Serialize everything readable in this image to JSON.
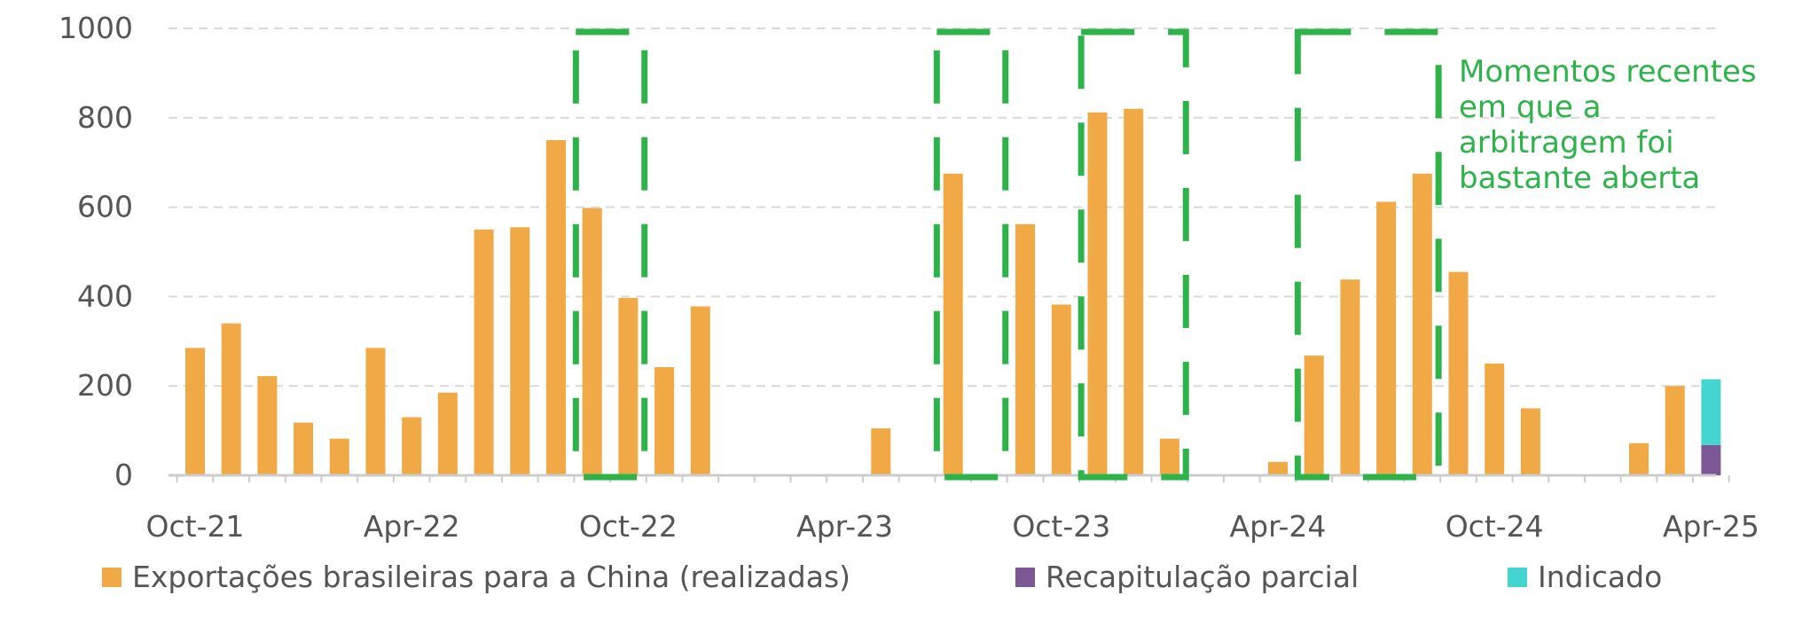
{
  "chart_data": {
    "type": "bar",
    "stacked": true,
    "ylim": [
      0,
      1000
    ],
    "yticks": [
      "0",
      "200",
      "400",
      "600",
      "800",
      "1000"
    ],
    "xtick_labels": [
      "Oct-21",
      "Apr-22",
      "Oct-22",
      "Apr-23",
      "Oct-23",
      "Apr-24",
      "Oct-24",
      "Apr-25"
    ],
    "months": [
      "Oct-21",
      "Nov-21",
      "Dec-21",
      "Jan-22",
      "Feb-22",
      "Mar-22",
      "Apr-22",
      "May-22",
      "Jun-22",
      "Jul-22",
      "Aug-22",
      "Sep-22",
      "Oct-22",
      "Nov-22",
      "Dec-22",
      "Jan-23",
      "Feb-23",
      "Mar-23",
      "Apr-23",
      "May-23",
      "Jun-23",
      "Jul-23",
      "Aug-23",
      "Sep-23",
      "Oct-23",
      "Nov-23",
      "Dec-23",
      "Jan-24",
      "Feb-24",
      "Mar-24",
      "Apr-24",
      "May-24",
      "Jun-24",
      "Jul-24",
      "Aug-24",
      "Sep-24",
      "Oct-24",
      "Nov-24",
      "Dec-24",
      "Jan-25",
      "Feb-25",
      "Mar-25",
      "Apr-25"
    ],
    "series": [
      {
        "name": "Exportações brasileiras para a China (realizadas)",
        "color": "#f0a945",
        "values": [
          285,
          340,
          222,
          118,
          82,
          285,
          130,
          185,
          550,
          555,
          750,
          598,
          397,
          242,
          378,
          0,
          0,
          0,
          0,
          105,
          0,
          675,
          0,
          562,
          382,
          812,
          820,
          82,
          0,
          0,
          30,
          268,
          438,
          612,
          675,
          455,
          250,
          150,
          0,
          0,
          72,
          200,
          0
        ]
      },
      {
        "name": "Recapitulação parcial",
        "color": "#7d5897",
        "values": [
          0,
          0,
          0,
          0,
          0,
          0,
          0,
          0,
          0,
          0,
          0,
          0,
          0,
          0,
          0,
          0,
          0,
          0,
          0,
          0,
          0,
          0,
          0,
          0,
          0,
          0,
          0,
          0,
          0,
          0,
          0,
          0,
          0,
          0,
          0,
          0,
          0,
          0,
          0,
          0,
          0,
          0,
          68
        ]
      },
      {
        "name": "Indicado",
        "color": "#45d5d0",
        "values": [
          0,
          0,
          0,
          0,
          0,
          0,
          0,
          0,
          0,
          0,
          0,
          0,
          0,
          0,
          0,
          0,
          0,
          0,
          0,
          0,
          0,
          0,
          0,
          0,
          0,
          0,
          0,
          0,
          0,
          0,
          0,
          0,
          0,
          0,
          0,
          0,
          0,
          0,
          0,
          0,
          0,
          0,
          147
        ]
      }
    ],
    "highlight_color": "#2db34a",
    "highlight_windows": [
      {
        "from": "Sep-22",
        "to": "Oct-22"
      },
      {
        "from": "Jul-23",
        "to": "Aug-23"
      },
      {
        "from": "Nov-23",
        "to": "Jan-24"
      },
      {
        "from": "May-24",
        "to": "Aug-24"
      }
    ],
    "annotation": {
      "lines": [
        "Momentos recentes",
        "em que a",
        "arbitragem foi",
        "bastante aberta"
      ]
    },
    "grid": true,
    "legend_position": "bottom"
  }
}
